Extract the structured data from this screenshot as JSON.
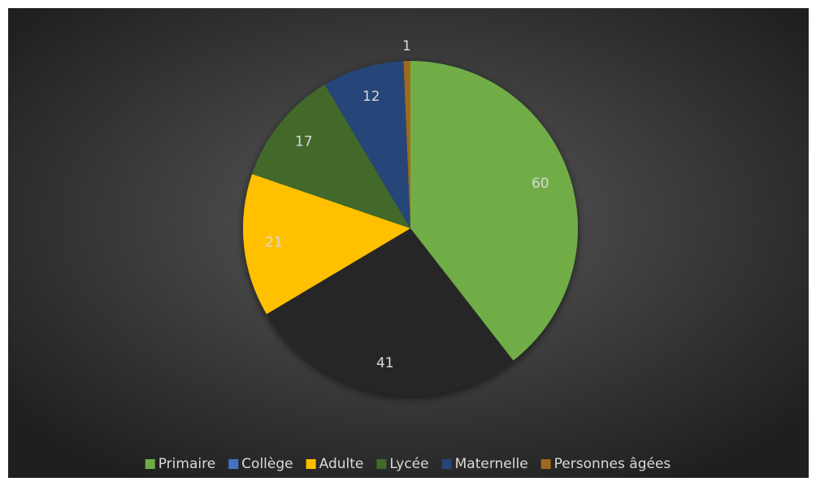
{
  "chart_data": {
    "type": "pie",
    "categories": [
      "Primaire",
      "Collège",
      "Adulte",
      "Lycée",
      "Maternelle",
      "Personnes âgées"
    ],
    "values": [
      60,
      41,
      21,
      17,
      12,
      1
    ],
    "colors": [
      "#70ad47",
      "#262626",
      "#ffc000",
      "#43682b",
      "#264478",
      "#9e6a1f"
    ],
    "legend_colors": [
      "#70ad47",
      "#4472c4",
      "#ffc000",
      "#43682b",
      "#264478",
      "#9e6a1f"
    ],
    "legend": "bottom"
  }
}
